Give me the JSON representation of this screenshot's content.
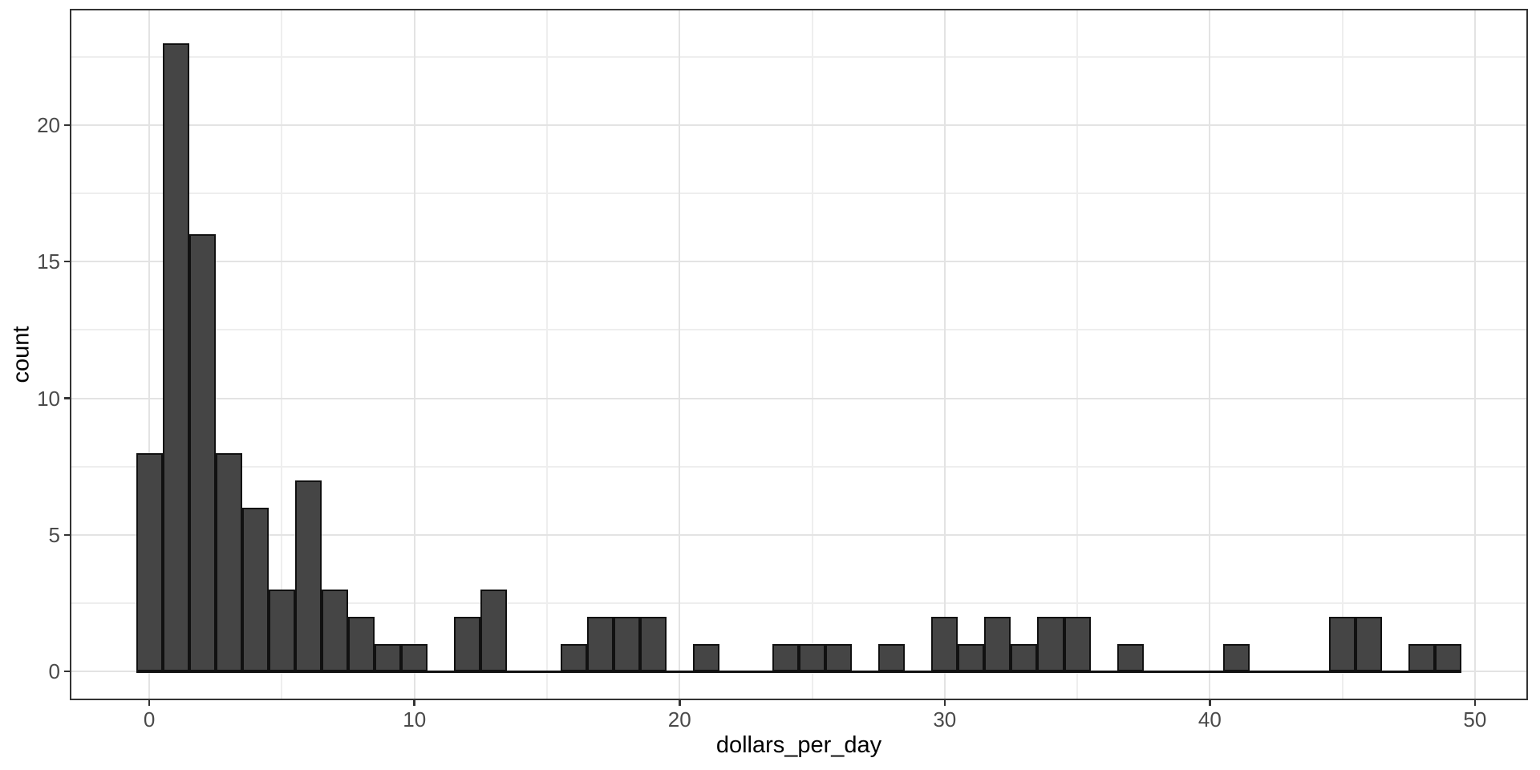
{
  "chart_data": {
    "type": "bar",
    "variant": "histogram",
    "title": "",
    "xlabel": "dollars_per_day",
    "ylabel": "count",
    "bin_width": 1,
    "categories": [
      0,
      1,
      2,
      3,
      4,
      5,
      6,
      7,
      8,
      9,
      10,
      11,
      12,
      13,
      14,
      15,
      16,
      17,
      18,
      19,
      20,
      21,
      22,
      23,
      24,
      25,
      26,
      27,
      28,
      29,
      30,
      31,
      32,
      33,
      34,
      35,
      36,
      37,
      38,
      39,
      40,
      41,
      42,
      43,
      44,
      45,
      46,
      47,
      48,
      49
    ],
    "values": [
      8,
      23,
      16,
      8,
      6,
      3,
      7,
      3,
      2,
      1,
      1,
      0,
      2,
      3,
      0,
      0,
      1,
      2,
      2,
      2,
      0,
      1,
      0,
      0,
      1,
      1,
      1,
      0,
      1,
      0,
      2,
      1,
      2,
      1,
      2,
      2,
      0,
      1,
      0,
      0,
      0,
      1,
      0,
      0,
      0,
      2,
      2,
      0,
      1,
      1
    ],
    "x_ticks": [
      0,
      10,
      20,
      30,
      40,
      50
    ],
    "x_minor_ticks": [
      5,
      15,
      25,
      35,
      45
    ],
    "y_ticks": [
      0,
      5,
      10,
      15,
      20
    ],
    "y_minor_ticks": [
      2.5,
      7.5,
      12.5,
      17.5,
      22.5
    ],
    "xlim": [
      -3,
      52
    ],
    "ylim": [
      -1.05,
      24.25
    ],
    "grid": true,
    "legend_position": "none",
    "colors": {
      "bar_fill": "#454545",
      "bar_stroke": "#111111",
      "grid_major": "#e3e3e3",
      "grid_minor": "#eeeeee",
      "panel_border": "#333333",
      "tick_mark": "#333333",
      "tick_label": "#4a4a4a",
      "axis_title": "#000000",
      "background": "#ffffff"
    }
  }
}
